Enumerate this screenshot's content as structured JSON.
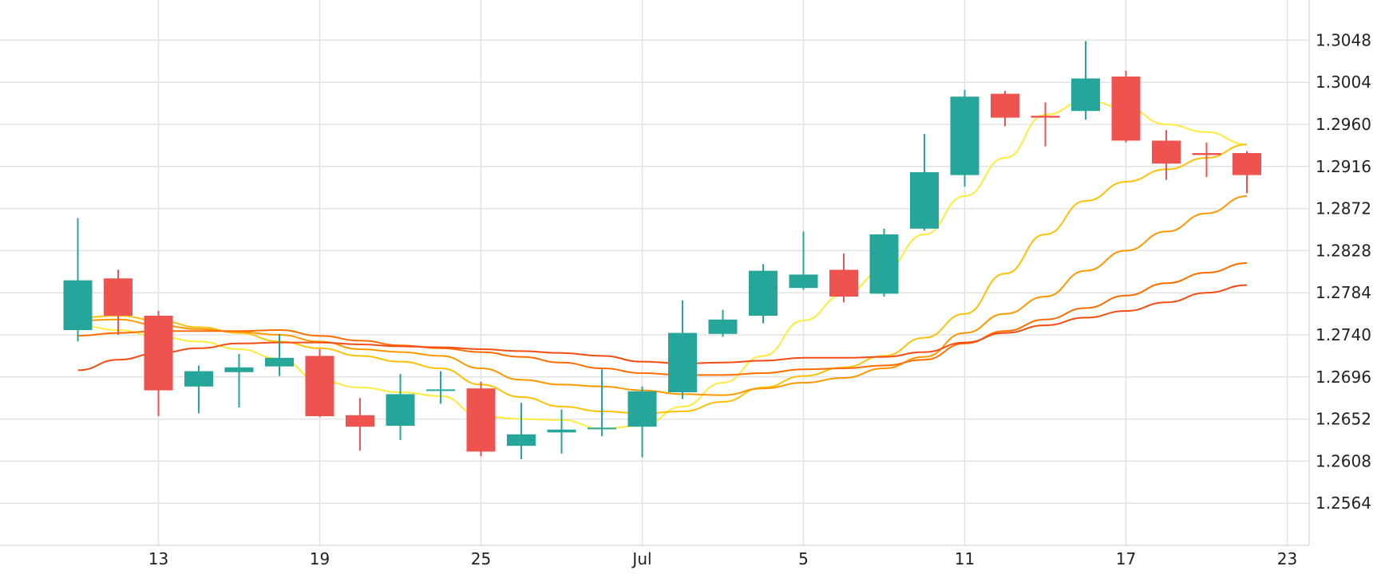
{
  "chart_data": {
    "type": "candlestick",
    "title": "",
    "xlabel": "",
    "ylabel": "",
    "x_tick_labels": [
      "13",
      "19",
      "25",
      "Jul",
      "5",
      "11",
      "17",
      "23"
    ],
    "x_tick_sessions": [
      2,
      6,
      10,
      14,
      18,
      22,
      26,
      30
    ],
    "y_ticks": [
      "1.3048",
      "1.3004",
      "1.2960",
      "1.2916",
      "1.2872",
      "1.2828",
      "1.2784",
      "1.2740",
      "1.2696",
      "1.2652",
      "1.2608",
      "1.2564"
    ],
    "ylim": [
      1.252,
      1.309
    ],
    "grid": true,
    "colors": {
      "up": "#26a69a",
      "down": "#ef5350",
      "grid": "#e3e3e3",
      "axis": "#dddddd"
    },
    "candles": [
      {
        "session": 0,
        "open": 1.2745,
        "high": 1.2862,
        "low": 1.2733,
        "close": 1.2797
      },
      {
        "session": 1,
        "open": 1.2799,
        "high": 1.2808,
        "low": 1.274,
        "close": 1.276
      },
      {
        "session": 2,
        "open": 1.276,
        "high": 1.2765,
        "low": 1.2655,
        "close": 1.2682
      },
      {
        "session": 3,
        "open": 1.2686,
        "high": 1.2708,
        "low": 1.2658,
        "close": 1.2702
      },
      {
        "session": 4,
        "open": 1.2701,
        "high": 1.272,
        "low": 1.2664,
        "close": 1.2706
      },
      {
        "session": 5,
        "open": 1.2707,
        "high": 1.2741,
        "low": 1.2697,
        "close": 1.2716
      },
      {
        "session": 6,
        "open": 1.2718,
        "high": 1.2725,
        "low": 1.2654,
        "close": 1.2655
      },
      {
        "session": 7,
        "open": 1.2656,
        "high": 1.2674,
        "low": 1.2619,
        "close": 1.2644
      },
      {
        "session": 8,
        "open": 1.2645,
        "high": 1.2699,
        "low": 1.263,
        "close": 1.2678
      },
      {
        "session": 9,
        "open": 1.2682,
        "high": 1.2702,
        "low": 1.2668,
        "close": 1.2683
      },
      {
        "session": 10,
        "open": 1.2684,
        "high": 1.2691,
        "low": 1.2613,
        "close": 1.2618
      },
      {
        "session": 11,
        "open": 1.2624,
        "high": 1.2669,
        "low": 1.261,
        "close": 1.2636
      },
      {
        "session": 12,
        "open": 1.2638,
        "high": 1.2662,
        "low": 1.2616,
        "close": 1.2641
      },
      {
        "session": 13,
        "open": 1.2642,
        "high": 1.2704,
        "low": 1.2634,
        "close": 1.2643
      },
      {
        "session": 14,
        "open": 1.2644,
        "high": 1.2686,
        "low": 1.2612,
        "close": 1.2681
      },
      {
        "session": 15,
        "open": 1.268,
        "high": 1.2776,
        "low": 1.2673,
        "close": 1.2742
      },
      {
        "session": 16,
        "open": 1.2741,
        "high": 1.2766,
        "low": 1.2738,
        "close": 1.2756
      },
      {
        "session": 17,
        "open": 1.276,
        "high": 1.2814,
        "low": 1.2752,
        "close": 1.2807
      },
      {
        "session": 18,
        "open": 1.2789,
        "high": 1.2848,
        "low": 1.2787,
        "close": 1.2803
      },
      {
        "session": 19,
        "open": 1.2808,
        "high": 1.2825,
        "low": 1.2774,
        "close": 1.278
      },
      {
        "session": 20,
        "open": 1.2783,
        "high": 1.2851,
        "low": 1.278,
        "close": 1.2845
      },
      {
        "session": 21,
        "open": 1.2851,
        "high": 1.295,
        "low": 1.2849,
        "close": 1.291
      },
      {
        "session": 22,
        "open": 1.2907,
        "high": 1.2996,
        "low": 1.2895,
        "close": 1.2989
      },
      {
        "session": 23,
        "open": 1.2992,
        "high": 1.2995,
        "low": 1.2958,
        "close": 1.2967
      },
      {
        "session": 24,
        "open": 1.2969,
        "high": 1.2983,
        "low": 1.2937,
        "close": 1.2967
      },
      {
        "session": 25,
        "open": 1.2974,
        "high": 1.3047,
        "low": 1.2965,
        "close": 1.3008
      },
      {
        "session": 26,
        "open": 1.301,
        "high": 1.3016,
        "low": 1.2941,
        "close": 1.2943
      },
      {
        "session": 27,
        "open": 1.2943,
        "high": 1.2954,
        "low": 1.2902,
        "close": 1.2919
      },
      {
        "session": 28,
        "open": 1.293,
        "high": 1.2941,
        "low": 1.2905,
        "close": 1.2928
      },
      {
        "session": 29,
        "open": 1.293,
        "high": 1.2932,
        "low": 1.2888,
        "close": 1.2907
      }
    ],
    "moving_averages": [
      {
        "color": "#ffeb3b",
        "values": [
          1.275,
          1.2745,
          1.2738,
          1.2733,
          1.2725,
          1.2715,
          1.2692,
          1.2685,
          1.268,
          1.2676,
          1.2655,
          1.2652,
          1.2651,
          1.2642,
          1.2645,
          1.2665,
          1.269,
          1.2718,
          1.2755,
          1.2782,
          1.2808,
          1.2845,
          1.2885,
          1.2925,
          1.297,
          1.2985,
          1.2977,
          1.296,
          1.2952,
          1.2939
        ]
      },
      {
        "color": "#ffc107",
        "values": [
          1.2758,
          1.276,
          1.2755,
          1.2748,
          1.2742,
          1.2733,
          1.2726,
          1.2718,
          1.2712,
          1.2705,
          1.2688,
          1.2675,
          1.2665,
          1.266,
          1.2658,
          1.266,
          1.267,
          1.2685,
          1.2697,
          1.2706,
          1.2718,
          1.2737,
          1.2762,
          1.2804,
          1.2845,
          1.288,
          1.29,
          1.2913,
          1.2925,
          1.2939
        ]
      },
      {
        "color": "#ff9800",
        "values": [
          1.2755,
          1.2756,
          1.275,
          1.2746,
          1.2743,
          1.274,
          1.2733,
          1.2725,
          1.2722,
          1.2718,
          1.2705,
          1.2693,
          1.2688,
          1.2686,
          1.2682,
          1.2678,
          1.2677,
          1.2684,
          1.269,
          1.2695,
          1.2705,
          1.2717,
          1.2742,
          1.2762,
          1.278,
          1.2807,
          1.2828,
          1.2848,
          1.2867,
          1.2885
        ]
      },
      {
        "color": "#ff6d00",
        "values": [
          1.2739,
          1.2742,
          1.2744,
          1.2744,
          1.2744,
          1.2745,
          1.2739,
          1.2734,
          1.2729,
          1.2726,
          1.2722,
          1.2717,
          1.2711,
          1.2705,
          1.27,
          1.2698,
          1.2698,
          1.27,
          1.2704,
          1.2705,
          1.2708,
          1.2714,
          1.2731,
          1.2744,
          1.2756,
          1.2768,
          1.2781,
          1.2794,
          1.2805,
          1.2815
        ]
      },
      {
        "color": "#f44d14",
        "values": [
          1.2703,
          1.2714,
          1.2721,
          1.2726,
          1.2731,
          1.2732,
          1.2732,
          1.273,
          1.2728,
          1.2727,
          1.2725,
          1.2723,
          1.2721,
          1.2718,
          1.2712,
          1.271,
          1.2711,
          1.2713,
          1.2716,
          1.2716,
          1.2717,
          1.2722,
          1.2732,
          1.2742,
          1.275,
          1.2758,
          1.2765,
          1.2774,
          1.2784,
          1.2792
        ]
      }
    ]
  }
}
